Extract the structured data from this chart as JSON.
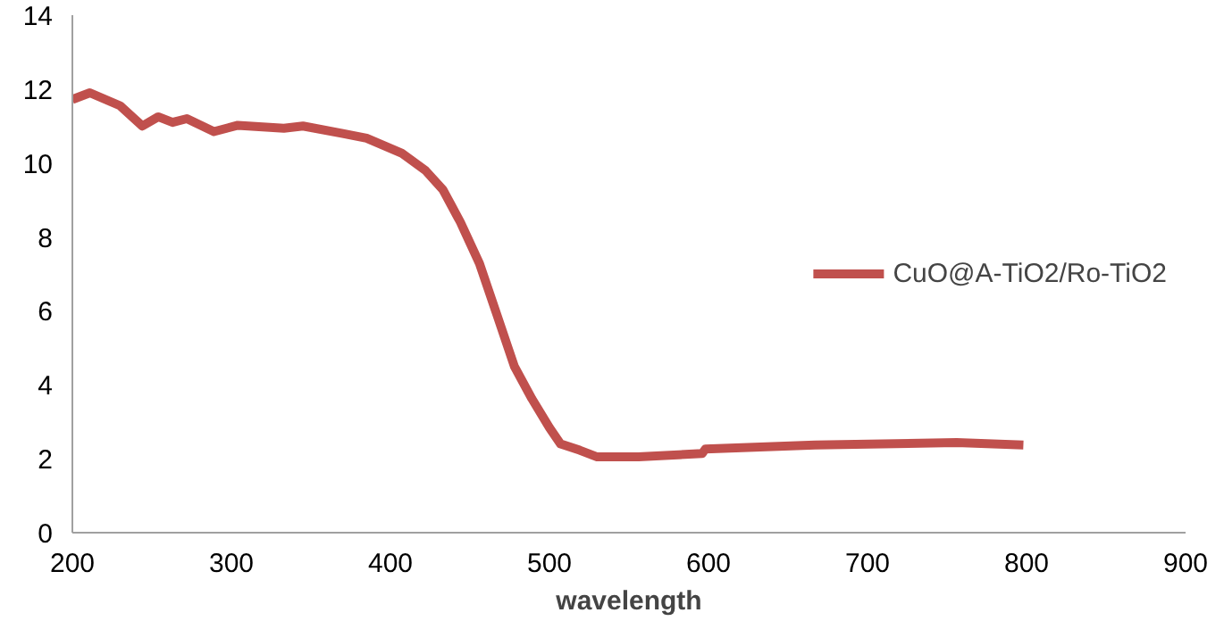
{
  "chart_data": {
    "type": "line",
    "xlabel": "wavelength",
    "xlim": [
      200,
      900
    ],
    "ylim": [
      0,
      14
    ],
    "xticks": [
      200,
      300,
      400,
      500,
      600,
      700,
      800,
      900
    ],
    "yticks": [
      0,
      2,
      4,
      6,
      8,
      10,
      12,
      14
    ],
    "grid": false,
    "legend": "right",
    "marker": "none",
    "line_style": "solid",
    "series": [
      {
        "name": "CuO@A-TiO2/Ro-TiO2",
        "color": "#c0504d",
        "x": [
          200,
          211,
          230,
          244,
          254,
          263,
          272,
          289,
          304,
          333,
          345,
          370,
          385,
          407,
          422,
          433,
          444,
          456,
          467,
          478,
          489,
          500,
          507,
          519,
          530,
          556,
          596,
          598,
          667,
          756,
          798
        ],
        "values": [
          11.72,
          11.9,
          11.55,
          11.0,
          11.25,
          11.1,
          11.2,
          10.85,
          11.02,
          10.94,
          11.0,
          10.8,
          10.67,
          10.27,
          9.8,
          9.28,
          8.4,
          7.28,
          5.89,
          4.49,
          3.62,
          2.84,
          2.4,
          2.23,
          2.05,
          2.05,
          2.14,
          2.26,
          2.37,
          2.44,
          2.37
        ]
      }
    ]
  }
}
